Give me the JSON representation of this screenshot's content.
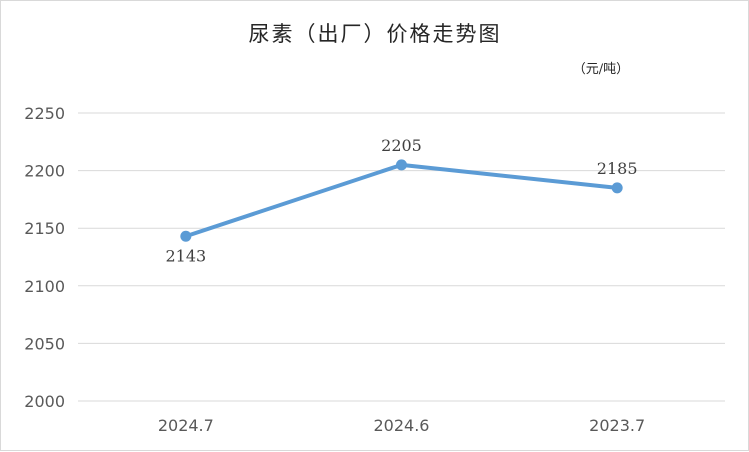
{
  "chart_data": {
    "type": "line",
    "title": "尿素（出厂）价格走势图",
    "unit_label": "（元/吨）",
    "categories": [
      "2024.7",
      "2024.6",
      "2023.7"
    ],
    "series": [
      {
        "values": [
          2143,
          2205,
          2185
        ],
        "color": "#5b9bd5"
      }
    ],
    "data_labels": [
      "2143",
      "2205",
      "2185"
    ],
    "ylim": [
      2000,
      2250
    ],
    "yticks": [
      2250,
      2200,
      2150,
      2100,
      2050,
      2000
    ],
    "ytick_labels": [
      "2250",
      "2200",
      "2150",
      "2100",
      "2050",
      "2000"
    ],
    "grid": true,
    "legend": "none"
  }
}
